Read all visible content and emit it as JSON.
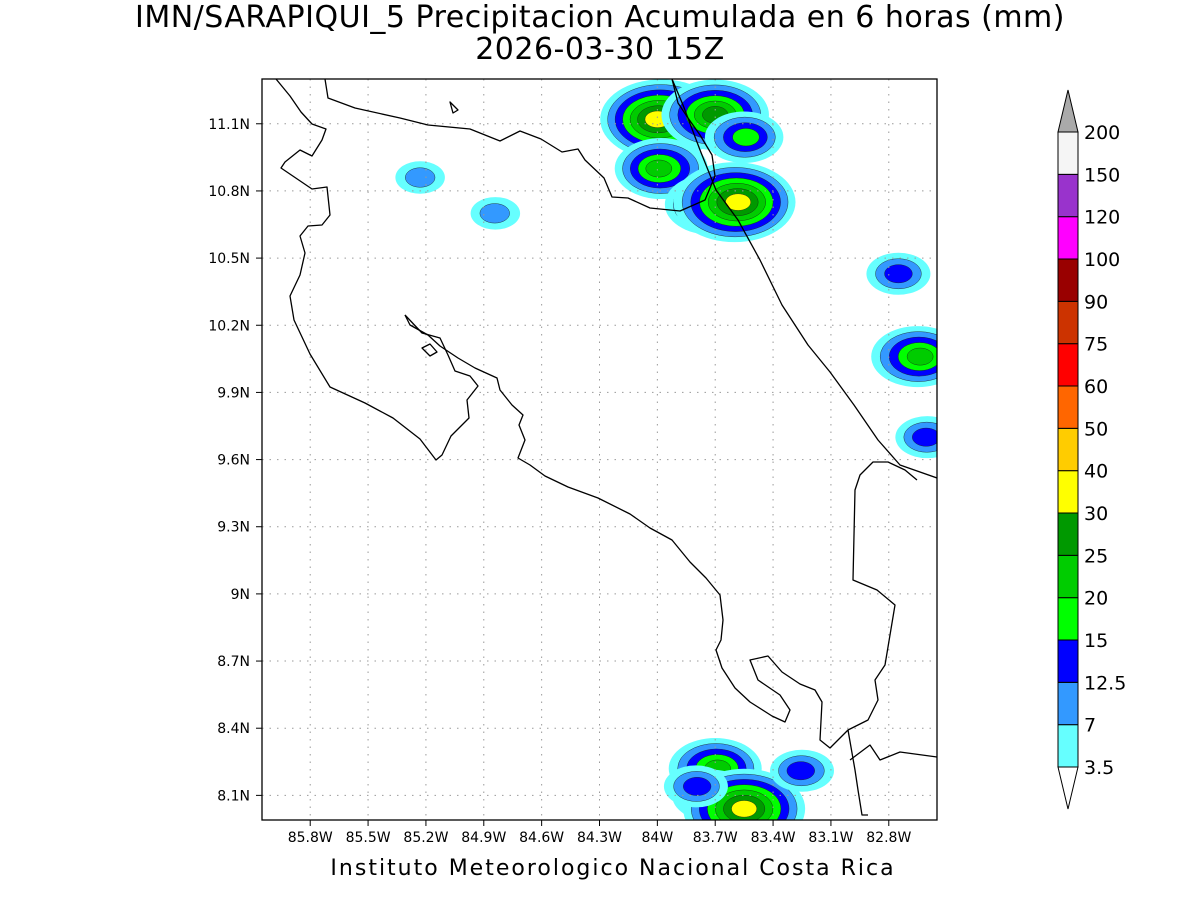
{
  "title": {
    "line1": "IMN/SARAPIQUI_5 Precipitacion Acumulada en 6 horas (mm)",
    "line2": "2026-03-30 15Z"
  },
  "map": {
    "lon_range": [
      -86.05,
      -82.55
    ],
    "lat_range": [
      7.99,
      11.3
    ],
    "lat_ticks": [
      {
        "value": 11.1,
        "label": "11.1N"
      },
      {
        "value": 10.8,
        "label": "10.8N"
      },
      {
        "value": 10.5,
        "label": "10.5N"
      },
      {
        "value": 10.2,
        "label": "10.2N"
      },
      {
        "value": 9.9,
        "label": "9.9N"
      },
      {
        "value": 9.6,
        "label": "9.6N"
      },
      {
        "value": 9.3,
        "label": "9.3N"
      },
      {
        "value": 9.0,
        "label": "9N"
      },
      {
        "value": 8.7,
        "label": "8.7N"
      },
      {
        "value": 8.4,
        "label": "8.4N"
      },
      {
        "value": 8.1,
        "label": "8.1N"
      }
    ],
    "lon_ticks": [
      {
        "value": -85.8,
        "label": "85.8W"
      },
      {
        "value": -85.5,
        "label": "85.5W"
      },
      {
        "value": -85.2,
        "label": "85.2W"
      },
      {
        "value": -84.9,
        "label": "84.9W"
      },
      {
        "value": -84.6,
        "label": "84.6W"
      },
      {
        "value": -84.3,
        "label": "84.3W"
      },
      {
        "value": -84.0,
        "label": "84W"
      },
      {
        "value": -83.7,
        "label": "83.7W"
      },
      {
        "value": -83.4,
        "label": "83.4W"
      },
      {
        "value": -83.1,
        "label": "83.1W"
      },
      {
        "value": -82.8,
        "label": "82.8W"
      }
    ],
    "grid": "dotted",
    "colors": {
      "coast": "#000000",
      "grid": "#9a9a9a"
    }
  },
  "colorbar": {
    "levels": [
      {
        "label": "3.5",
        "color": "#66ffff"
      },
      {
        "label": "7",
        "color": "#3399ff"
      },
      {
        "label": "12.5",
        "color": "#0000ff"
      },
      {
        "label": "15",
        "color": "#00ff00"
      },
      {
        "label": "20",
        "color": "#00cc00"
      },
      {
        "label": "25",
        "color": "#009900"
      },
      {
        "label": "30",
        "color": "#ffff00"
      },
      {
        "label": "40",
        "color": "#ffcc00"
      },
      {
        "label": "50",
        "color": "#ff6600"
      },
      {
        "label": "60",
        "color": "#ff0000"
      },
      {
        "label": "75",
        "color": "#cc3300"
      },
      {
        "label": "90",
        "color": "#990000"
      },
      {
        "label": "100",
        "color": "#ff00ff"
      },
      {
        "label": "120",
        "color": "#9933cc"
      },
      {
        "label": "150",
        "color": "#f5f5f5"
      },
      {
        "label": "200",
        "color": "#aaaaaa"
      }
    ]
  },
  "precip_cells": [
    {
      "lon": -83.98,
      "lat": 11.12,
      "peak": "30"
    },
    {
      "lon": -83.7,
      "lat": 11.14,
      "peak": "25"
    },
    {
      "lon": -83.55,
      "lat": 11.04,
      "peak": "15"
    },
    {
      "lon": -83.98,
      "lat": 10.9,
      "peak": "20"
    },
    {
      "lon": -83.72,
      "lat": 10.74,
      "peak": "20"
    },
    {
      "lon": -83.6,
      "lat": 10.75,
      "peak": "30"
    },
    {
      "lon": -84.84,
      "lat": 10.7,
      "peak": "7"
    },
    {
      "lon": -85.23,
      "lat": 10.86,
      "peak": "7"
    },
    {
      "lon": -82.65,
      "lat": 10.06,
      "peak": "20"
    },
    {
      "lon": -82.6,
      "lat": 9.7,
      "peak": "12.5"
    },
    {
      "lon": -82.75,
      "lat": 10.43,
      "peak": "12.5"
    },
    {
      "lon": -83.7,
      "lat": 8.22,
      "peak": "20"
    },
    {
      "lon": -83.72,
      "lat": 8.1,
      "peak": "15"
    },
    {
      "lon": -83.55,
      "lat": 8.04,
      "peak": "30"
    },
    {
      "lon": -83.8,
      "lat": 8.14,
      "peak": "12.5"
    },
    {
      "lon": -83.25,
      "lat": 8.21,
      "peak": "12.5"
    }
  ],
  "footer": "Instituto Meteorologico Nacional Costa Rica"
}
